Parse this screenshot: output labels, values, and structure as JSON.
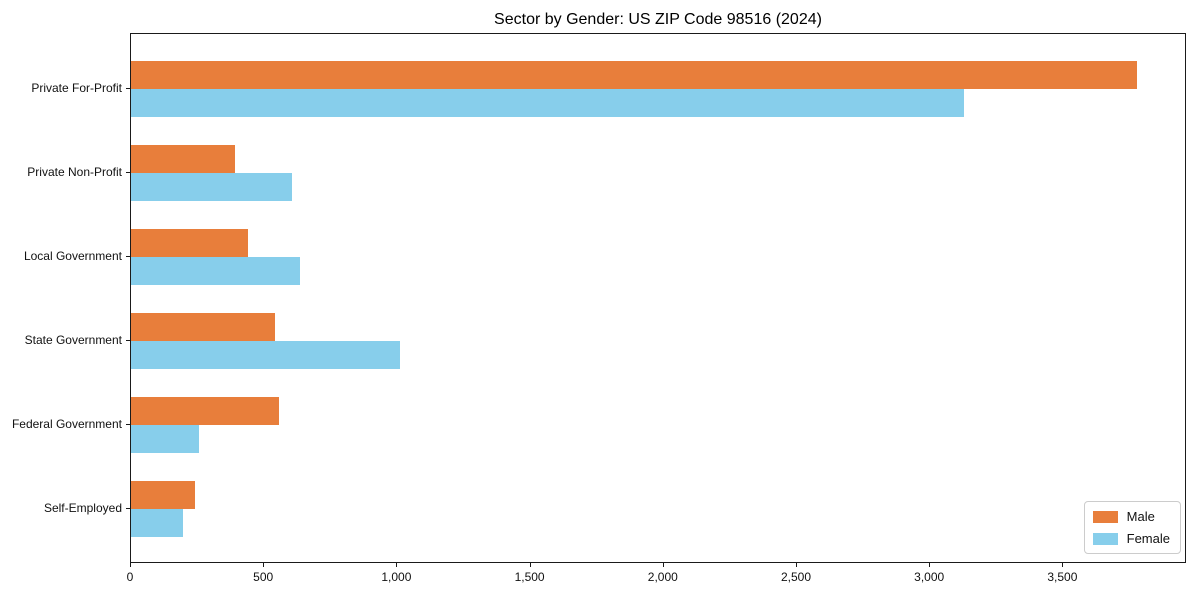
{
  "chart_data": {
    "type": "bar",
    "orientation": "horizontal",
    "title": "Sector by Gender: US ZIP Code 98516 (2024)",
    "categories": [
      "Private For-Profit",
      "Private Non-Profit",
      "Local Government",
      "State Government",
      "Federal Government",
      "Self-Employed"
    ],
    "series": [
      {
        "name": "Male",
        "color": "#E87E3B",
        "values": [
          3775,
          390,
          440,
          540,
          555,
          240
        ]
      },
      {
        "name": "Female",
        "color": "#87CEEB",
        "values": [
          3125,
          605,
          635,
          1010,
          255,
          195
        ]
      }
    ],
    "xlim": [
      0,
      3964
    ],
    "xticks": [
      0,
      500,
      1000,
      1500,
      2000,
      2500,
      3000,
      3500
    ],
    "xtick_labels": [
      "0",
      "500",
      "1,000",
      "1,500",
      "2,000",
      "2,500",
      "3,000",
      "3,500"
    ],
    "xlabel": "",
    "ylabel": "",
    "grid": false,
    "legend_position": "lower right",
    "axis_color": "#1a1a1a",
    "background_color": "#ffffff"
  }
}
